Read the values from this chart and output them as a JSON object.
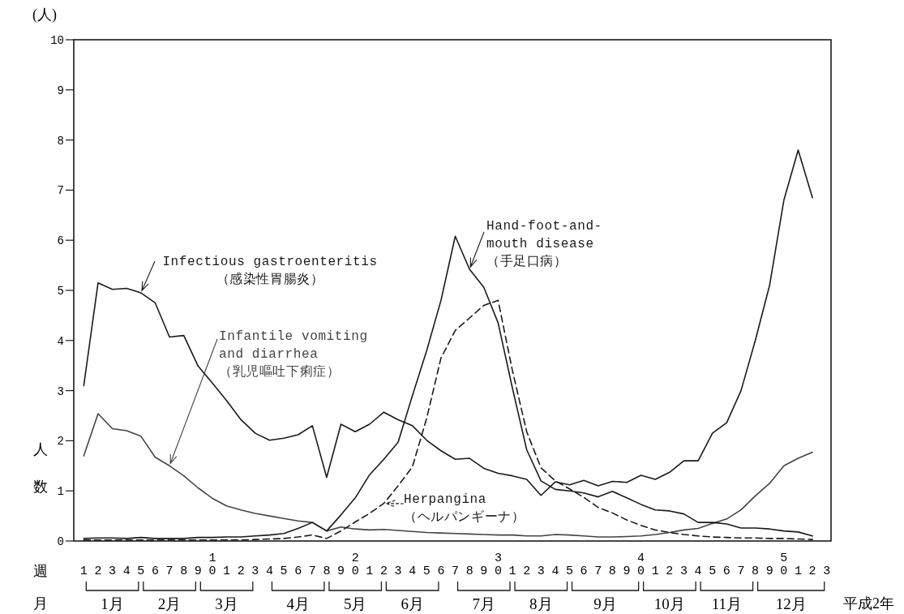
{
  "chart_data": {
    "type": "line",
    "legend": "left",
    "xlabel": "週",
    "ylabel": "人数",
    "annotations": [
      "(人)",
      "月",
      "1月",
      "2月",
      "3月",
      "4月",
      "5月",
      "6月",
      "7月",
      "8月",
      "9月",
      "10月",
      "11月",
      "12月",
      "平成2年"
    ],
    "categories": [
      "1",
      "2",
      "3",
      "4",
      "5",
      "6",
      "7",
      "8",
      "9",
      "10",
      "1",
      "2",
      "3",
      "4",
      "5",
      "6",
      "7",
      "8",
      "9",
      "20",
      "1",
      "2",
      "3",
      "4",
      "5",
      "6",
      "7",
      "8",
      "9",
      "30",
      "1",
      "2",
      "3",
      "4",
      "5",
      "6",
      "7",
      "8",
      "9",
      "40",
      "1",
      "2",
      "3",
      "4",
      "5",
      "6",
      "7",
      "8",
      "9",
      "50",
      "1",
      "2",
      "3"
    ],
    "ylim": [
      0,
      10
    ],
    "yticks": [
      0,
      1,
      2,
      3,
      4,
      5,
      6,
      7,
      8,
      9,
      10
    ],
    "series": [
      {
        "name": "Infectious gastroenteritis （感染性胃腸炎）",
        "color": "#1a1a1a",
        "line_style": "solid",
        "values": [
          3.1,
          5.15,
          5.02,
          5.04,
          4.95,
          4.75,
          4.07,
          4.1,
          3.49,
          3.15,
          2.8,
          2.42,
          2.15,
          2.01,
          2.05,
          2.12,
          2.3,
          1.27,
          2.33,
          2.18,
          2.33,
          2.57,
          2.42,
          2.3,
          2.01,
          1.8,
          1.63,
          1.65,
          1.45,
          1.35,
          1.3,
          1.23,
          0.91,
          1.18,
          1.12,
          1.21,
          1.1,
          1.19,
          1.17,
          1.31,
          1.23,
          1.37,
          1.6,
          1.6,
          2.15,
          2.36,
          3.0,
          4.0,
          5.1,
          6.8,
          7.8,
          6.85,
          null
        ]
      },
      {
        "name": "Infantile vomiting and diarrhea （乳児嘔吐下痢症）",
        "color": "#444444",
        "line_style": "solid",
        "values": [
          1.7,
          2.54,
          2.24,
          2.2,
          2.09,
          1.67,
          1.5,
          1.3,
          1.06,
          0.85,
          0.7,
          0.62,
          0.55,
          0.5,
          0.45,
          0.4,
          0.37,
          0.2,
          0.28,
          0.24,
          0.22,
          0.23,
          0.21,
          0.19,
          0.17,
          0.16,
          0.15,
          0.14,
          0.13,
          0.12,
          0.12,
          0.1,
          0.1,
          0.13,
          0.12,
          0.1,
          0.08,
          0.08,
          0.09,
          0.1,
          0.13,
          0.17,
          0.22,
          0.25,
          0.35,
          0.44,
          0.62,
          0.9,
          1.15,
          1.5,
          1.65,
          1.77,
          null
        ]
      },
      {
        "name": "Hand-foot-and-mouth disease （手足口病）",
        "color": "#1a1a1a",
        "line_style": "solid",
        "values": [
          0.05,
          0.06,
          0.06,
          0.05,
          0.07,
          0.05,
          0.05,
          0.05,
          0.07,
          0.07,
          0.08,
          0.08,
          0.1,
          0.12,
          0.15,
          0.25,
          0.37,
          0.2,
          0.52,
          0.86,
          1.32,
          1.63,
          1.97,
          2.9,
          3.8,
          4.8,
          6.08,
          5.42,
          5.06,
          4.35,
          3.05,
          1.82,
          1.2,
          1.03,
          1.0,
          0.96,
          0.88,
          0.99,
          0.86,
          0.73,
          0.62,
          0.6,
          0.54,
          0.37,
          0.37,
          0.34,
          0.26,
          0.26,
          0.24,
          0.2,
          0.18,
          0.1,
          null
        ]
      },
      {
        "name": "Herpangina （ヘルパンギーナ）",
        "color": "#1a1a1a",
        "line_style": "dashed",
        "values": [
          0.02,
          0.02,
          0.02,
          0.02,
          0.02,
          0.02,
          0.02,
          0.02,
          0.02,
          0.02,
          0.02,
          0.02,
          0.03,
          0.04,
          0.05,
          0.08,
          0.12,
          0.05,
          0.2,
          0.38,
          0.55,
          0.75,
          1.1,
          1.48,
          2.45,
          3.65,
          4.2,
          4.45,
          4.7,
          4.8,
          3.4,
          2.18,
          1.46,
          1.2,
          1.04,
          0.87,
          0.67,
          0.56,
          0.42,
          0.31,
          0.22,
          0.17,
          0.13,
          0.1,
          0.08,
          0.07,
          0.06,
          0.06,
          0.05,
          0.05,
          0.04,
          0.03,
          null
        ]
      }
    ]
  }
}
